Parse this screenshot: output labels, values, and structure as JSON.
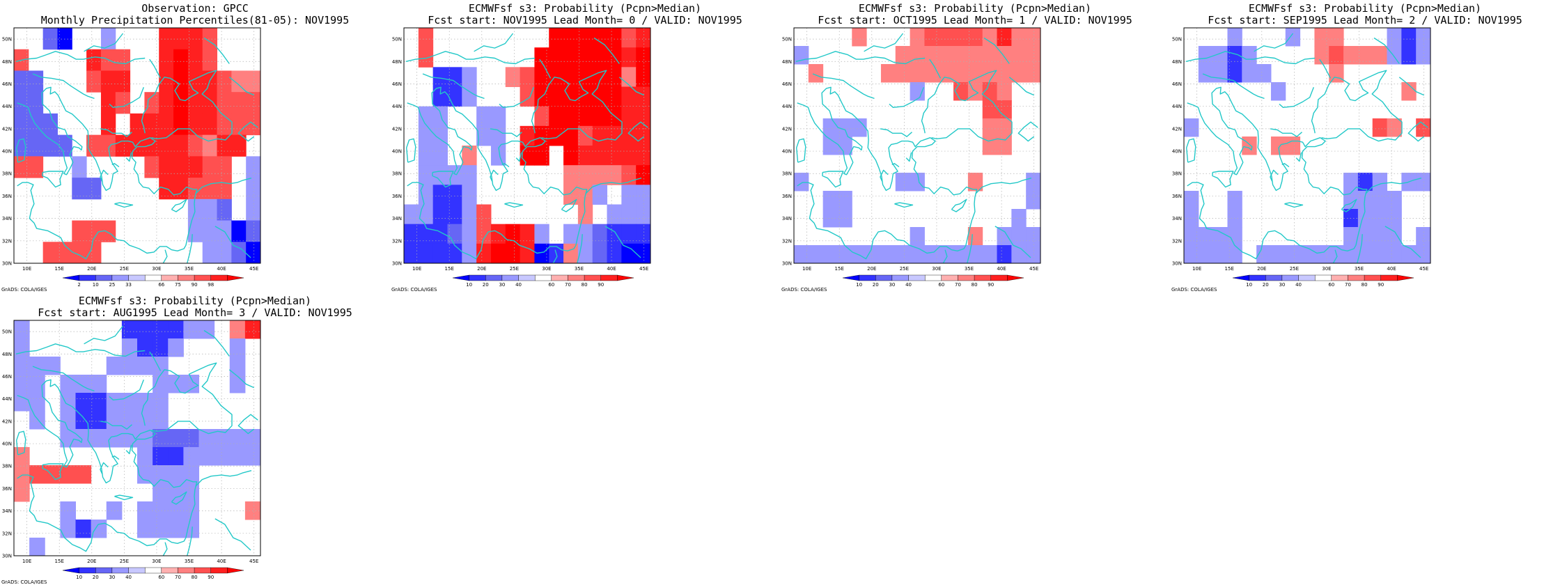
{
  "credit_label": "GrADS: COLA/IGES",
  "colors": {
    "coast": "#22c8c8",
    "grid": "#b0b0b0",
    "frame": "#000000"
  },
  "palettes": {
    "obs": [
      "#0000ff",
      "#3333ff",
      "#6666f5",
      "#9999ff",
      "#c8c8ff",
      "#ffffff",
      "#ffb0b0",
      "#ff8080",
      "#ff5050",
      "#ff2020",
      "#ff0000"
    ],
    "prob": [
      "#0000ff",
      "#3333ff",
      "#6666f5",
      "#9999ff",
      "#c8c8ff",
      "#ffffff",
      "#ffb0b0",
      "#ff8080",
      "#ff5050",
      "#ff2020",
      "#ff0000"
    ]
  },
  "map_extent": {
    "lon": [
      8,
      46
    ],
    "lat": [
      30,
      51
    ]
  },
  "lon_labels": [
    "10E",
    "15E",
    "20E",
    "25E",
    "30E",
    "35E",
    "40E",
    "45E"
  ],
  "lat_labels": [
    "30N",
    "32N",
    "34N",
    "36N",
    "38N",
    "40N",
    "42N",
    "44N",
    "46N",
    "48N",
    "50N"
  ],
  "panels": [
    {
      "title1": "Observation: GPCC",
      "title2": "Monthly Precipitation Percentiles(81-05): NOV1995",
      "palette": "obs",
      "colorbar_labels": [
        "2",
        "10",
        "25",
        "33",
        "66",
        "75",
        "90",
        "98"
      ],
      "grid": [
        [
          5,
          5,
          2,
          0,
          5,
          5,
          3,
          5,
          5,
          5,
          9,
          9,
          9,
          8,
          5,
          5,
          5
        ],
        [
          8,
          5,
          5,
          5,
          5,
          9,
          8,
          8,
          5,
          5,
          9,
          10,
          9,
          8,
          5,
          5,
          5
        ],
        [
          2,
          2,
          5,
          5,
          5,
          8,
          9,
          9,
          5,
          5,
          9,
          10,
          9,
          9,
          8,
          7,
          7
        ],
        [
          2,
          2,
          5,
          5,
          5,
          5,
          9,
          8,
          5,
          8,
          9,
          10,
          9,
          9,
          8,
          8,
          8
        ],
        [
          2,
          2,
          2,
          5,
          5,
          5,
          9,
          5,
          9,
          9,
          9,
          10,
          9,
          9,
          8,
          8,
          8
        ],
        [
          2,
          2,
          2,
          2,
          5,
          8,
          8,
          9,
          9,
          9,
          9,
          9,
          8,
          7,
          9,
          9,
          5
        ],
        [
          8,
          8,
          5,
          5,
          3,
          5,
          5,
          5,
          5,
          8,
          9,
          9,
          9,
          8,
          8,
          5,
          3
        ],
        [
          5,
          5,
          5,
          5,
          2,
          2,
          5,
          5,
          5,
          5,
          9,
          9,
          8,
          8,
          8,
          5,
          3
        ],
        [
          5,
          5,
          5,
          5,
          5,
          5,
          5,
          5,
          5,
          5,
          5,
          5,
          3,
          3,
          2,
          5,
          3
        ],
        [
          5,
          5,
          5,
          5,
          8,
          8,
          8,
          5,
          5,
          5,
          5,
          5,
          3,
          3,
          3,
          0,
          2
        ],
        [
          5,
          5,
          8,
          8,
          8,
          8,
          5,
          5,
          5,
          5,
          5,
          5,
          5,
          3,
          3,
          2,
          0
        ]
      ]
    },
    {
      "title1": "ECMWFsf s3: Probability (Pcpn>Median)",
      "title2": "Fcst start: NOV1995  Lead Month= 0 / VALID: NOV1995",
      "palette": "prob",
      "colorbar_labels": [
        "10",
        "20",
        "30",
        "40",
        "60",
        "70",
        "80",
        "90"
      ],
      "grid": [
        [
          5,
          8,
          5,
          5,
          5,
          5,
          5,
          5,
          5,
          5,
          10,
          10,
          10,
          10,
          10,
          8,
          9
        ],
        [
          5,
          8,
          5,
          5,
          5,
          5,
          5,
          5,
          5,
          10,
          10,
          10,
          10,
          10,
          10,
          9,
          10
        ],
        [
          5,
          5,
          1,
          1,
          3,
          5,
          5,
          7,
          8,
          10,
          10,
          10,
          10,
          10,
          10,
          7,
          10
        ],
        [
          5,
          5,
          1,
          1,
          3,
          5,
          5,
          5,
          8,
          10,
          10,
          10,
          10,
          10,
          10,
          9,
          9
        ],
        [
          5,
          3,
          3,
          5,
          5,
          3,
          3,
          5,
          5,
          8,
          10,
          10,
          10,
          10,
          10,
          9,
          9
        ],
        [
          5,
          3,
          3,
          5,
          5,
          3,
          3,
          5,
          9,
          10,
          10,
          10,
          8,
          9,
          9,
          9,
          9
        ],
        [
          5,
          3,
          3,
          5,
          7,
          5,
          3,
          5,
          10,
          10,
          5,
          10,
          9,
          9,
          9,
          9,
          9
        ],
        [
          5,
          3,
          3,
          3,
          3,
          5,
          5,
          5,
          5,
          5,
          5,
          7,
          7,
          7,
          7,
          8,
          10
        ],
        [
          5,
          3,
          1,
          1,
          3,
          5,
          5,
          5,
          5,
          5,
          5,
          7,
          7,
          3,
          5,
          3,
          3
        ],
        [
          3,
          3,
          1,
          1,
          3,
          8,
          5,
          5,
          5,
          5,
          5,
          5,
          7,
          5,
          3,
          3,
          3
        ],
        [
          1,
          1,
          1,
          2,
          3,
          8,
          9,
          10,
          9,
          3,
          5,
          3,
          3,
          2,
          1,
          1,
          1
        ],
        [
          1,
          1,
          1,
          1,
          3,
          9,
          10,
          10,
          9,
          0,
          1,
          7,
          3,
          2,
          1,
          0,
          0
        ]
      ]
    },
    {
      "title1": "ECMWFsf s3: Probability (Pcpn>Median)",
      "title2": "Fcst start: OCT1995  Lead Month= 1 / VALID: NOV1995",
      "palette": "prob",
      "colorbar_labels": [
        "10",
        "20",
        "30",
        "40",
        "60",
        "70",
        "80",
        "90"
      ],
      "grid": [
        [
          5,
          5,
          5,
          5,
          7,
          5,
          5,
          5,
          7,
          8,
          8,
          8,
          8,
          7,
          9,
          7,
          7
        ],
        [
          3,
          5,
          5,
          5,
          5,
          5,
          5,
          7,
          7,
          7,
          7,
          7,
          7,
          7,
          7,
          7,
          7
        ],
        [
          5,
          7,
          5,
          5,
          5,
          5,
          7,
          7,
          7,
          7,
          7,
          7,
          7,
          7,
          7,
          7,
          7
        ],
        [
          5,
          5,
          5,
          5,
          5,
          5,
          5,
          5,
          3,
          5,
          5,
          8,
          7,
          8,
          7,
          5,
          5
        ],
        [
          5,
          5,
          5,
          5,
          5,
          5,
          5,
          5,
          5,
          5,
          5,
          5,
          5,
          8,
          8,
          5,
          5
        ],
        [
          5,
          5,
          3,
          3,
          3,
          5,
          5,
          5,
          5,
          5,
          5,
          5,
          5,
          7,
          7,
          5,
          5
        ],
        [
          5,
          5,
          3,
          3,
          5,
          5,
          5,
          5,
          5,
          5,
          5,
          5,
          5,
          7,
          7,
          5,
          5
        ],
        [
          5,
          5,
          5,
          5,
          5,
          5,
          5,
          5,
          5,
          5,
          5,
          5,
          5,
          5,
          5,
          5,
          5
        ],
        [
          3,
          5,
          5,
          5,
          5,
          5,
          5,
          3,
          3,
          5,
          5,
          5,
          7,
          5,
          5,
          5,
          3
        ],
        [
          5,
          5,
          3,
          3,
          5,
          5,
          5,
          5,
          5,
          5,
          5,
          5,
          5,
          5,
          5,
          5,
          3
        ],
        [
          5,
          5,
          3,
          3,
          5,
          5,
          5,
          5,
          5,
          5,
          5,
          5,
          5,
          5,
          5,
          3,
          5
        ],
        [
          5,
          5,
          5,
          5,
          5,
          5,
          5,
          5,
          3,
          5,
          5,
          5,
          7,
          5,
          3,
          3,
          3
        ],
        [
          3,
          3,
          3,
          3,
          3,
          3,
          3,
          3,
          3,
          3,
          3,
          3,
          3,
          3,
          1,
          3,
          3
        ]
      ]
    },
    {
      "title1": "ECMWFsf s3: Probability (Pcpn>Median)",
      "title2": "Fcst start: SEP1995  Lead Month= 2 / VALID: NOV1995",
      "palette": "prob",
      "colorbar_labels": [
        "10",
        "20",
        "30",
        "40",
        "60",
        "70",
        "80",
        "90"
      ],
      "grid": [
        [
          5,
          5,
          5,
          3,
          5,
          5,
          5,
          3,
          5,
          7,
          7,
          5,
          5,
          5,
          3,
          1,
          3
        ],
        [
          5,
          3,
          3,
          1,
          3,
          5,
          5,
          5,
          5,
          7,
          8,
          7,
          7,
          7,
          3,
          1,
          3
        ],
        [
          5,
          3,
          3,
          1,
          3,
          3,
          5,
          5,
          5,
          5,
          7,
          5,
          5,
          5,
          5,
          5,
          5
        ],
        [
          5,
          5,
          5,
          5,
          5,
          5,
          3,
          5,
          5,
          5,
          5,
          5,
          5,
          5,
          5,
          7,
          5
        ],
        [
          5,
          5,
          5,
          5,
          5,
          5,
          5,
          5,
          5,
          5,
          5,
          5,
          5,
          5,
          5,
          5,
          5
        ],
        [
          3,
          5,
          5,
          5,
          5,
          5,
          5,
          5,
          5,
          5,
          5,
          5,
          5,
          8,
          7,
          5,
          8
        ],
        [
          5,
          5,
          5,
          5,
          7,
          5,
          7,
          7,
          5,
          5,
          5,
          5,
          5,
          5,
          5,
          5,
          5
        ],
        [
          5,
          5,
          5,
          5,
          5,
          5,
          5,
          5,
          5,
          5,
          5,
          5,
          5,
          5,
          5,
          5,
          5
        ],
        [
          5,
          5,
          5,
          5,
          5,
          5,
          5,
          5,
          5,
          5,
          5,
          3,
          1,
          3,
          5,
          3,
          3
        ],
        [
          3,
          5,
          5,
          3,
          5,
          5,
          5,
          5,
          5,
          5,
          5,
          3,
          3,
          3,
          3,
          5,
          5
        ],
        [
          3,
          5,
          5,
          3,
          5,
          5,
          5,
          5,
          5,
          5,
          5,
          1,
          3,
          3,
          3,
          5,
          5
        ],
        [
          3,
          3,
          3,
          3,
          5,
          5,
          5,
          5,
          5,
          5,
          5,
          3,
          3,
          3,
          3,
          5,
          3
        ],
        [
          3,
          3,
          3,
          3,
          5,
          3,
          3,
          3,
          3,
          3,
          3,
          3,
          3,
          3,
          3,
          3,
          3
        ]
      ]
    },
    {
      "title1": "ECMWFsf s3: Probability (Pcpn>Median)",
      "title2": "Fcst start: AUG1995  Lead Month= 3 / VALID: NOV1995",
      "palette": "prob",
      "colorbar_labels": [
        "10",
        "20",
        "30",
        "40",
        "60",
        "70",
        "80",
        "90"
      ],
      "grid": [
        [
          3,
          5,
          5,
          5,
          5,
          5,
          5,
          1,
          1,
          1,
          1,
          3,
          3,
          5,
          7,
          9
        ],
        [
          3,
          5,
          5,
          5,
          5,
          5,
          5,
          3,
          1,
          1,
          3,
          5,
          5,
          5,
          3,
          5
        ],
        [
          3,
          3,
          3,
          5,
          5,
          5,
          3,
          3,
          3,
          3,
          5,
          5,
          5,
          5,
          3,
          5
        ],
        [
          3,
          3,
          5,
          3,
          3,
          3,
          5,
          5,
          5,
          3,
          3,
          3,
          5,
          5,
          3,
          5
        ],
        [
          3,
          3,
          5,
          3,
          1,
          1,
          3,
          3,
          3,
          3,
          5,
          5,
          5,
          5,
          5,
          5
        ],
        [
          5,
          3,
          5,
          3,
          1,
          1,
          3,
          3,
          3,
          3,
          5,
          5,
          5,
          5,
          5,
          5
        ],
        [
          5,
          5,
          5,
          3,
          3,
          3,
          3,
          3,
          3,
          2,
          2,
          2,
          3,
          3,
          3,
          3
        ],
        [
          7,
          5,
          5,
          5,
          5,
          5,
          5,
          5,
          3,
          1,
          1,
          3,
          3,
          3,
          3,
          3
        ],
        [
          7,
          8,
          8,
          8,
          8,
          5,
          5,
          5,
          3,
          3,
          3,
          3,
          5,
          5,
          5,
          5
        ],
        [
          7,
          5,
          5,
          5,
          5,
          5,
          5,
          5,
          5,
          3,
          3,
          3,
          5,
          5,
          5,
          5
        ],
        [
          5,
          5,
          5,
          3,
          5,
          5,
          3,
          5,
          3,
          3,
          3,
          3,
          5,
          5,
          5,
          7
        ],
        [
          5,
          5,
          5,
          3,
          1,
          3,
          5,
          5,
          3,
          3,
          3,
          3,
          5,
          5,
          5,
          5
        ],
        [
          5,
          3,
          5,
          5,
          5,
          5,
          5,
          5,
          5,
          5,
          5,
          5,
          5,
          5,
          5,
          5
        ]
      ]
    }
  ]
}
